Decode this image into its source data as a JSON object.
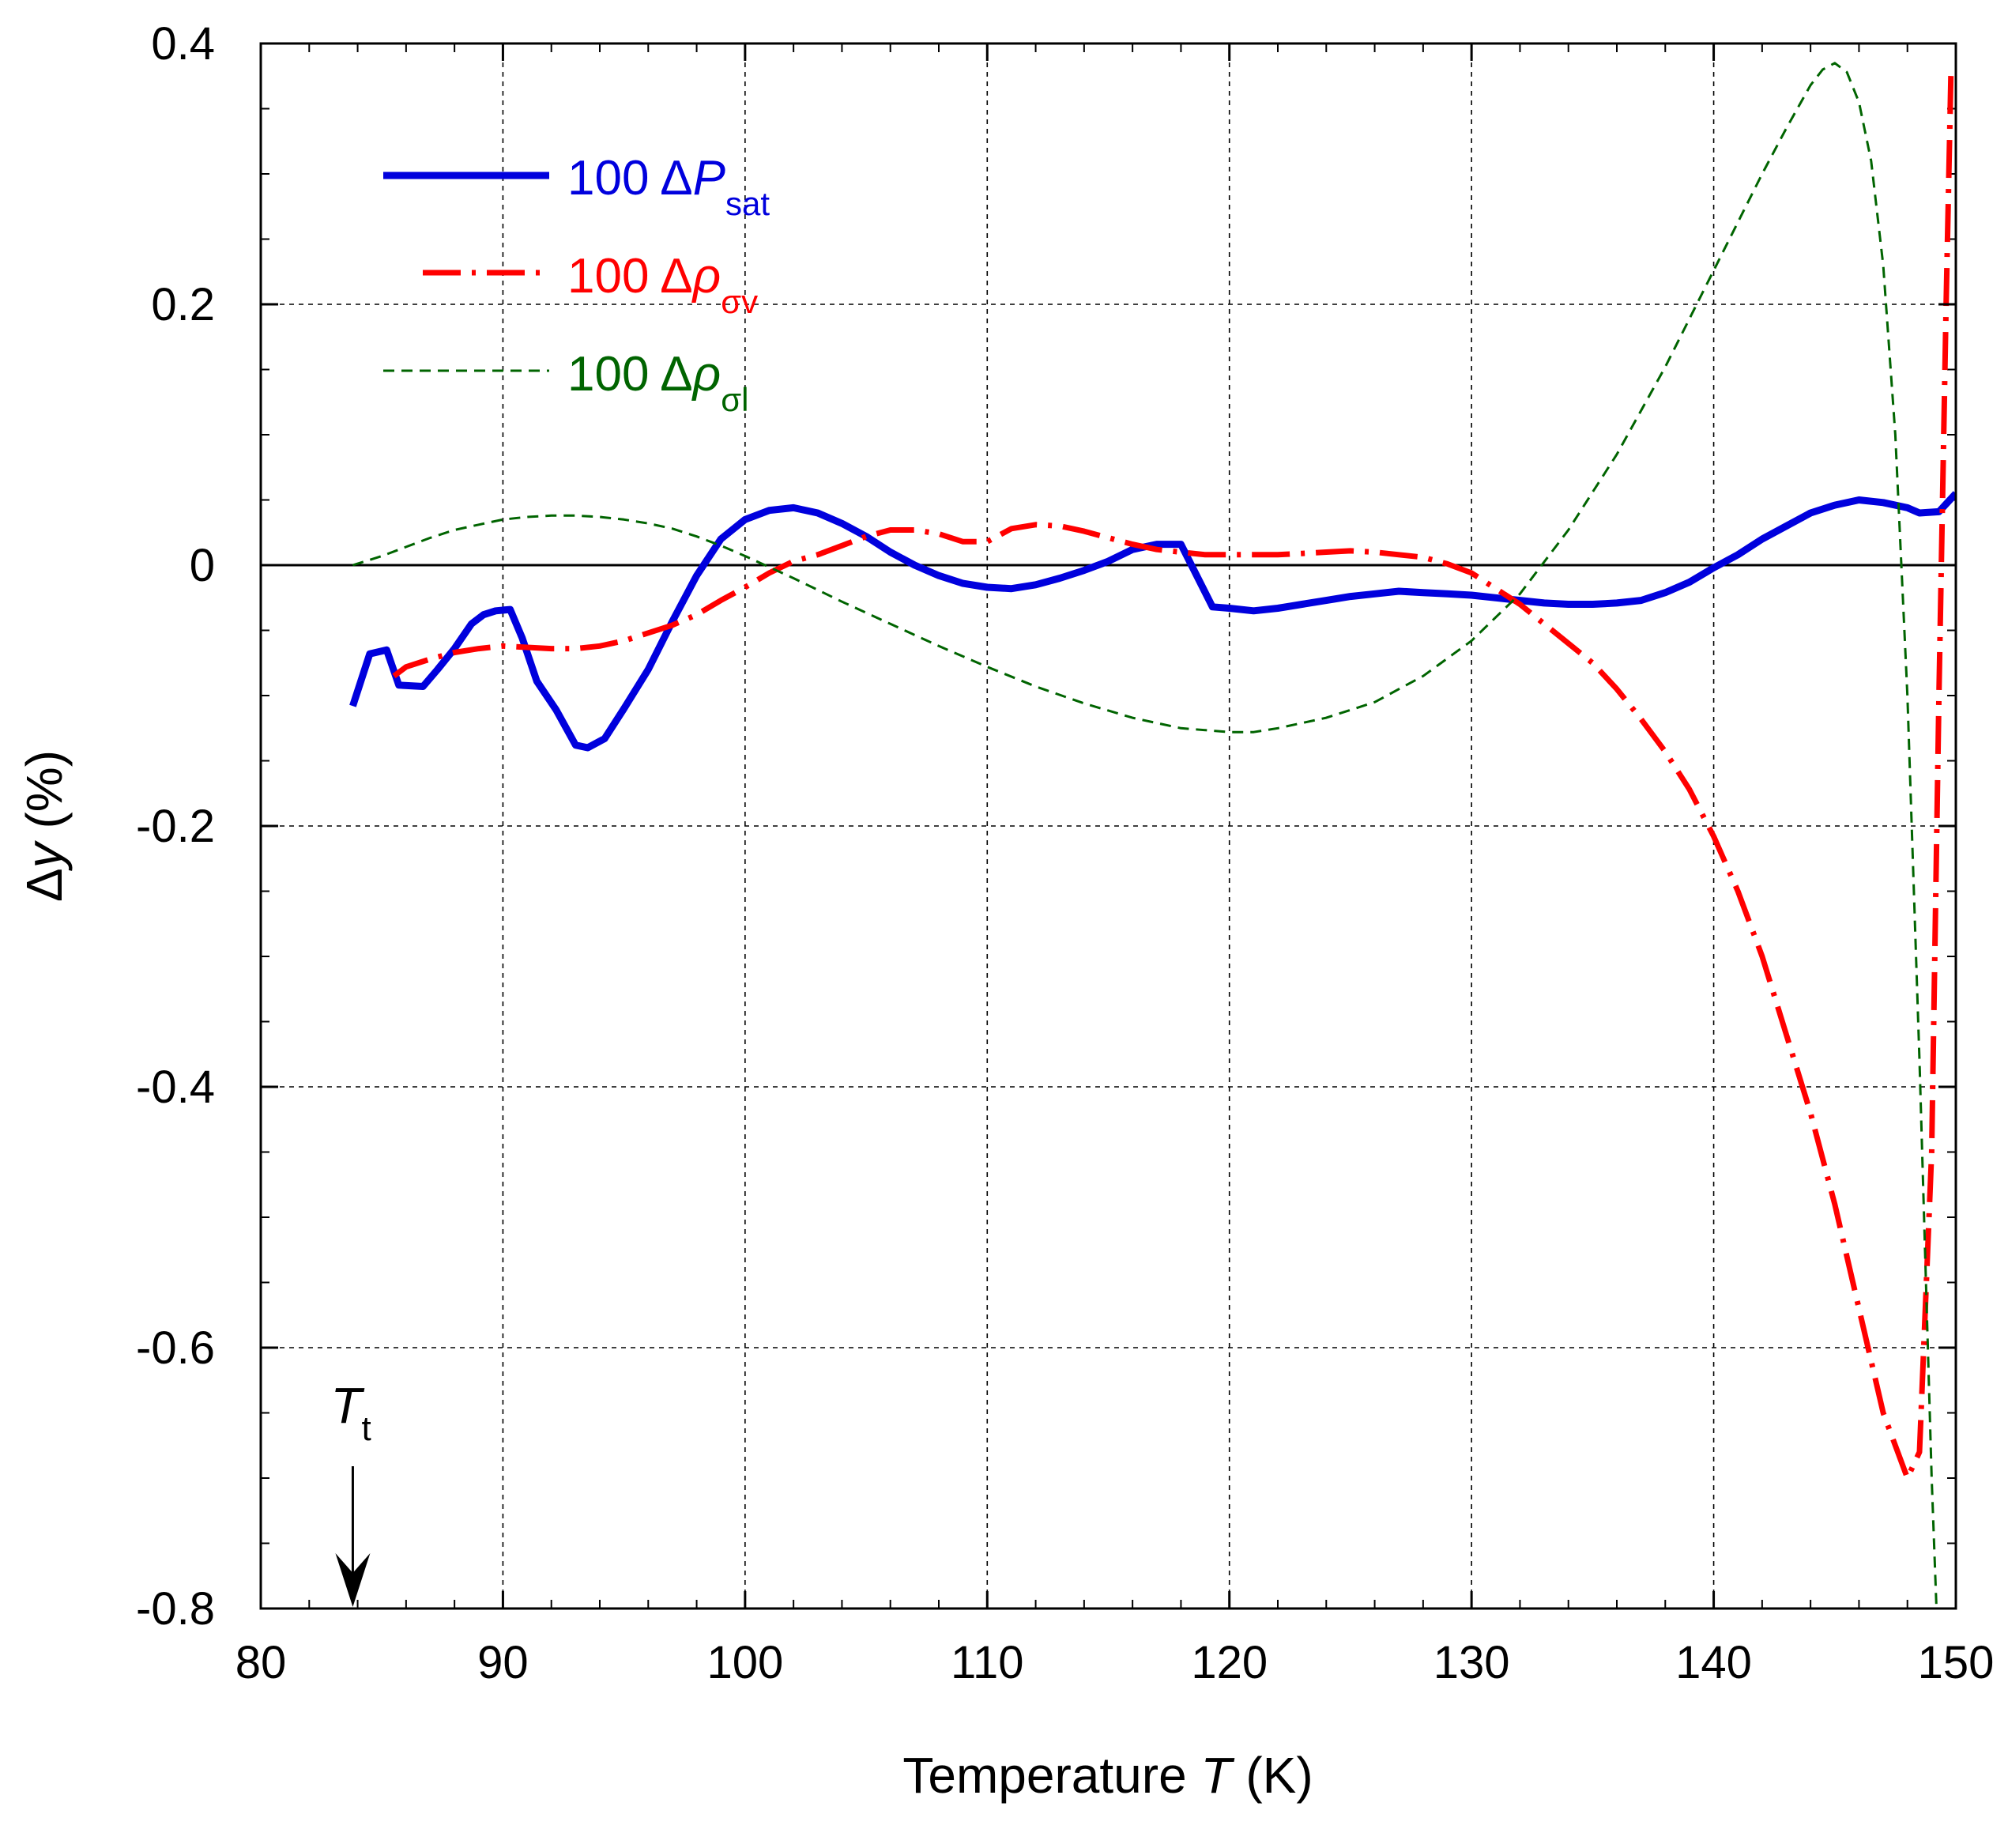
{
  "chart_data": {
    "type": "line",
    "xlabel_prefix": "Temperature ",
    "xlabel_var": "T",
    "xlabel_suffix": " (K)",
    "ylabel_delta": "Δ",
    "ylabel_var": "y",
    "ylabel_suffix": " (%)",
    "xlim": [
      80,
      150
    ],
    "ylim": [
      -0.8,
      0.4
    ],
    "xticks": [
      80,
      90,
      100,
      110,
      120,
      130,
      140,
      150
    ],
    "yticks": [
      -0.8,
      -0.6,
      -0.4,
      -0.2,
      0,
      0.2,
      0.4
    ],
    "xtick_labels": [
      "80",
      "90",
      "100",
      "110",
      "120",
      "130",
      "140",
      "150"
    ],
    "ytick_labels": [
      "-0.8",
      "-0.6",
      "-0.4",
      "-0.2",
      "0",
      "0.2",
      "0.4"
    ],
    "grid": true,
    "legend_position": "top-left",
    "annotation": {
      "label_main": "T",
      "label_sub": "t",
      "x": 83.8
    },
    "series": [
      {
        "name": "100 ΔP_sat",
        "label_prefix": "100 Δ",
        "label_var": "P",
        "label_sub": "sat",
        "color": "#0000dd",
        "style": "solid",
        "x": [
          83.8,
          84.5,
          85.2,
          85.7,
          86.7,
          87.3,
          88.0,
          88.7,
          89.2,
          89.7,
          90.3,
          90.8,
          91.4,
          92.2,
          93.0,
          93.5,
          94.2,
          95.0,
          96.0,
          97.0,
          98.0,
          99.0,
          100.0,
          101.0,
          102.0,
          103.0,
          104.0,
          105.0,
          106.0,
          107.0,
          108.0,
          109.0,
          110.0,
          111.0,
          112.0,
          113.0,
          114.0,
          115.0,
          116.0,
          117.0,
          118.0,
          119.3,
          120.0,
          121.0,
          122.0,
          123.0,
          124.0,
          125.0,
          126.0,
          127.0,
          128.0,
          129.0,
          130.0,
          131.0,
          132.0,
          133.0,
          134.0,
          135.0,
          136.0,
          137.0,
          138.0,
          139.0,
          140.0,
          141.0,
          142.0,
          143.0,
          144.0,
          145.0,
          146.0,
          147.0,
          148.0,
          148.5,
          149.3,
          150.0
        ],
        "y": [
          -0.108,
          -0.068,
          -0.065,
          -0.092,
          -0.093,
          -0.08,
          -0.064,
          -0.045,
          -0.038,
          -0.035,
          -0.034,
          -0.056,
          -0.089,
          -0.111,
          -0.138,
          -0.14,
          -0.133,
          -0.11,
          -0.08,
          -0.043,
          -0.008,
          0.02,
          0.035,
          0.042,
          0.044,
          0.04,
          0.032,
          0.022,
          0.01,
          0.0,
          -0.008,
          -0.014,
          -0.017,
          -0.018,
          -0.015,
          -0.01,
          -0.004,
          0.003,
          0.012,
          0.016,
          0.016,
          -0.032,
          -0.033,
          -0.035,
          -0.033,
          -0.03,
          -0.027,
          -0.024,
          -0.022,
          -0.02,
          -0.021,
          -0.022,
          -0.023,
          -0.025,
          -0.027,
          -0.029,
          -0.03,
          -0.03,
          -0.029,
          -0.027,
          -0.021,
          -0.013,
          -0.002,
          0.008,
          0.02,
          0.03,
          0.04,
          0.046,
          0.05,
          0.048,
          0.044,
          0.04,
          0.041,
          0.055
        ]
      },
      {
        "name": "100 Δρ_σv",
        "label_prefix": "100 Δ",
        "label_var": "ρ",
        "label_sub": "σv",
        "color": "#ff0000",
        "style": "dashdot",
        "x": [
          85.5,
          86.0,
          87.0,
          88.0,
          89.0,
          90.0,
          91.0,
          92.0,
          93.0,
          94.0,
          95.0,
          96.0,
          97.0,
          98.0,
          99.0,
          100.0,
          101.0,
          102.0,
          103.0,
          104.0,
          105.0,
          106.0,
          107.0,
          108.0,
          109.0,
          110.0,
          111.0,
          112.0,
          113.0,
          114.0,
          115.0,
          116.0,
          117.0,
          118.0,
          119.0,
          120.0,
          121.0,
          122.0,
          123.0,
          124.0,
          125.0,
          126.0,
          127.0,
          128.0,
          129.0,
          130.0,
          131.0,
          132.0,
          133.0,
          134.0,
          135.0,
          136.0,
          137.0,
          138.0,
          139.0,
          140.0,
          141.0,
          142.0,
          143.0,
          144.0,
          145.0,
          146.0,
          147.0,
          148.0,
          148.5,
          149.0,
          149.3,
          149.6,
          149.8
        ],
        "y": [
          -0.085,
          -0.078,
          -0.072,
          -0.067,
          -0.064,
          -0.062,
          -0.063,
          -0.064,
          -0.064,
          -0.062,
          -0.058,
          -0.052,
          -0.046,
          -0.038,
          -0.027,
          -0.017,
          -0.006,
          0.003,
          0.008,
          0.015,
          0.022,
          0.027,
          0.027,
          0.024,
          0.018,
          0.018,
          0.028,
          0.031,
          0.03,
          0.026,
          0.021,
          0.016,
          0.012,
          0.01,
          0.008,
          0.008,
          0.008,
          0.008,
          0.009,
          0.01,
          0.011,
          0.01,
          0.008,
          0.006,
          0.001,
          -0.006,
          -0.018,
          -0.03,
          -0.045,
          -0.06,
          -0.075,
          -0.095,
          -0.118,
          -0.143,
          -0.172,
          -0.208,
          -0.25,
          -0.3,
          -0.36,
          -0.42,
          -0.49,
          -0.57,
          -0.65,
          -0.7,
          -0.68,
          -0.45,
          -0.1,
          0.2,
          0.38
        ]
      },
      {
        "name": "100 Δρ_σl",
        "label_prefix": "100 Δ",
        "label_var": "ρ",
        "label_sub": "σl",
        "color": "#006400",
        "style": "dashed",
        "x": [
          83.8,
          85.0,
          86.0,
          87.0,
          88.0,
          89.0,
          90.0,
          91.0,
          92.0,
          93.0,
          94.0,
          95.0,
          96.0,
          97.0,
          98.0,
          99.0,
          100.0,
          102.0,
          104.0,
          106.0,
          108.0,
          110.0,
          112.0,
          114.0,
          116.0,
          118.0,
          120.0,
          121.0,
          122.0,
          124.0,
          126.0,
          128.0,
          130.0,
          132.0,
          134.0,
          136.0,
          138.0,
          140.0,
          142.0,
          143.0,
          144.0,
          144.5,
          145.0,
          145.5,
          146.0,
          146.5,
          147.0,
          147.5,
          148.0,
          148.5,
          149.0,
          149.2
        ],
        "y": [
          0.0,
          0.007,
          0.014,
          0.021,
          0.027,
          0.031,
          0.035,
          0.037,
          0.038,
          0.038,
          0.037,
          0.035,
          0.032,
          0.028,
          0.022,
          0.015,
          0.007,
          -0.01,
          -0.028,
          -0.045,
          -0.062,
          -0.078,
          -0.093,
          -0.106,
          -0.117,
          -0.125,
          -0.128,
          -0.128,
          -0.125,
          -0.117,
          -0.105,
          -0.085,
          -0.058,
          -0.022,
          0.027,
          0.085,
          0.152,
          0.226,
          0.3,
          0.335,
          0.368,
          0.38,
          0.385,
          0.378,
          0.355,
          0.31,
          0.23,
          0.1,
          -0.1,
          -0.38,
          -0.7,
          -0.8
        ]
      }
    ]
  }
}
